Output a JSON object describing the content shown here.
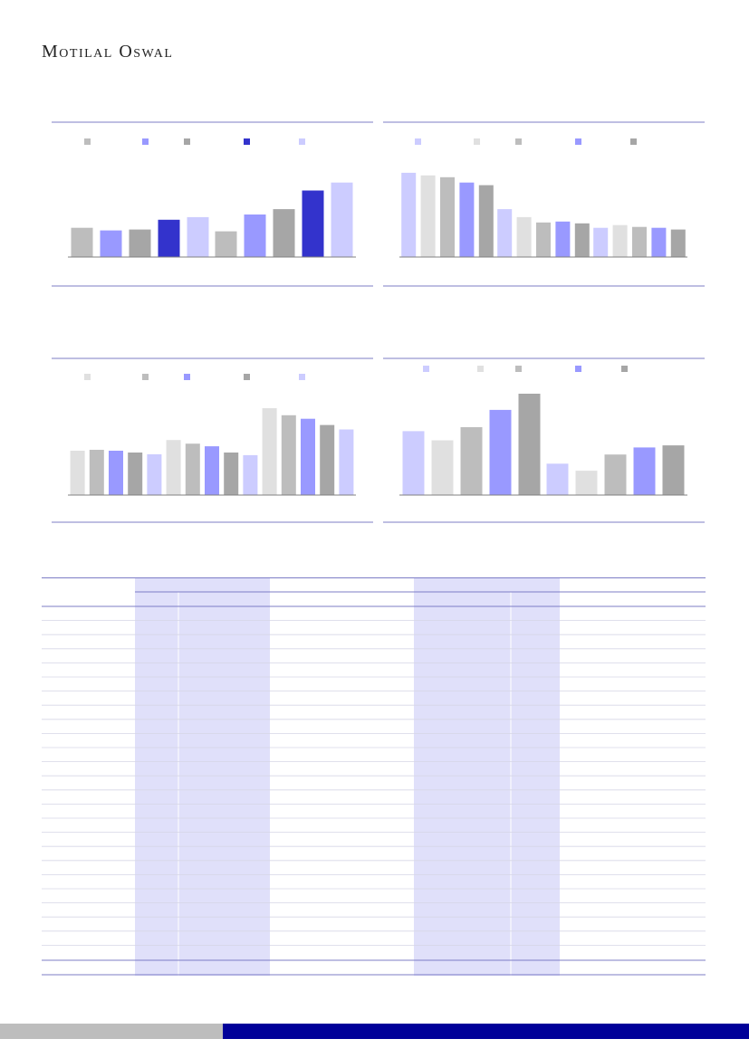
{
  "brand": {
    "name": "Motilal Oswal"
  },
  "colors": {
    "rule": "#7d7dc6",
    "table_shade": "#e0e0fa",
    "footer_grey": "#bdbdbd",
    "footer_blue": "#000099"
  },
  "chart_data": [
    {
      "type": "bar",
      "title": "",
      "categories": [
        "",
        ""
      ],
      "series": [
        {
          "color": "#bdbdbd",
          "values": [
            33,
            29
          ]
        },
        {
          "color": "#9999ff",
          "values": [
            30,
            48
          ]
        },
        {
          "color": "#a6a6a6",
          "values": [
            31,
            54
          ]
        },
        {
          "color": "#3333cc",
          "values": [
            42,
            75
          ]
        },
        {
          "color": "#ccccff",
          "values": [
            45,
            84
          ]
        }
      ],
      "ylim": [
        0,
        100
      ],
      "legend": "top",
      "grid": false
    },
    {
      "type": "bar",
      "title": "",
      "categories": [
        "",
        "",
        ""
      ],
      "series": [
        {
          "color": "#ccccff",
          "values": [
            95,
            54,
            33
          ]
        },
        {
          "color": "#e0e0e0",
          "values": [
            92,
            45,
            36
          ]
        },
        {
          "color": "#bdbdbd",
          "values": [
            90,
            39,
            34
          ]
        },
        {
          "color": "#9999ff",
          "values": [
            84,
            40,
            33
          ]
        },
        {
          "color": "#a6a6a6",
          "values": [
            81,
            38,
            31
          ]
        }
      ],
      "ylim": [
        0,
        100
      ],
      "legend": "top",
      "grid": false
    },
    {
      "type": "bar",
      "title": "",
      "categories": [
        "",
        "",
        ""
      ],
      "series": [
        {
          "color": "#e0e0e0",
          "values": [
            50,
            62,
            98
          ]
        },
        {
          "color": "#bdbdbd",
          "values": [
            51,
            58,
            90
          ]
        },
        {
          "color": "#9999ff",
          "values": [
            50,
            55,
            86
          ]
        },
        {
          "color": "#a6a6a6",
          "values": [
            48,
            48,
            79
          ]
        },
        {
          "color": "#ccccff",
          "values": [
            46,
            45,
            74
          ]
        }
      ],
      "ylim": [
        0,
        100
      ],
      "legend": "top",
      "grid": false
    },
    {
      "type": "bar",
      "title": "",
      "categories": [
        "",
        ""
      ],
      "series": [
        {
          "color": "#ccccff",
          "values": [
            63,
            31
          ]
        },
        {
          "color": "#e0e0e0",
          "values": [
            54,
            24
          ]
        },
        {
          "color": "#bdbdbd",
          "values": [
            67,
            40
          ]
        },
        {
          "color": "#9999ff",
          "values": [
            84,
            47
          ]
        },
        {
          "color": "#a6a6a6",
          "values": [
            100,
            49
          ]
        }
      ],
      "ylim": [
        0,
        100
      ],
      "legend": "top",
      "grid": false
    }
  ]
}
